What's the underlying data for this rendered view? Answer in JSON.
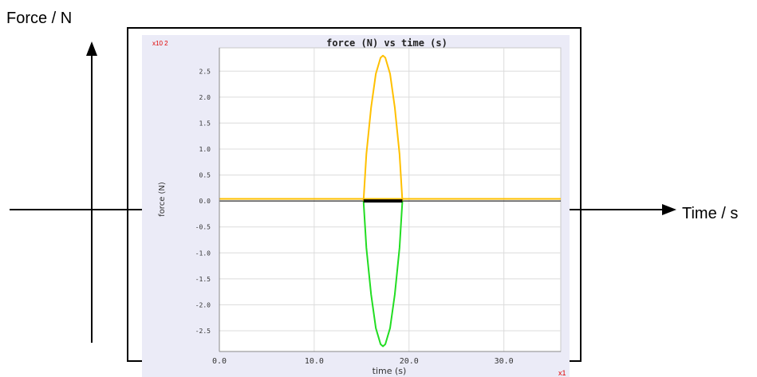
{
  "outer_axes": {
    "y_label": "Force / N",
    "x_label": "Time / s"
  },
  "chart_data": {
    "type": "line",
    "title": "force (N) vs time (s)",
    "xlabel": "time (s)",
    "ylabel": "force (N)",
    "y_multiplier": "x10 2",
    "x_multiplier": "x1",
    "xlim": [
      0,
      36
    ],
    "ylim": [
      -2.9,
      2.95
    ],
    "xticks": [
      "0.0",
      "10.0",
      "20.0",
      "30.0"
    ],
    "yticks": [
      "2.5",
      "2.0",
      "1.5",
      "1.0",
      "0.5",
      "0.0",
      "-0.5",
      "-1.0",
      "-1.5",
      "-2.0",
      "-2.5"
    ],
    "grid": true,
    "series": [
      {
        "color": "#ffc000",
        "x": [
          0,
          36
        ],
        "y": [
          0.04,
          0.04
        ]
      },
      {
        "color": "#ffc000",
        "x": [
          15.2,
          15.5,
          16.0,
          16.5,
          17.0,
          17.25,
          17.5,
          18.0,
          18.5,
          19.0,
          19.3
        ],
        "y": [
          0.0,
          0.9,
          1.8,
          2.45,
          2.76,
          2.8,
          2.76,
          2.45,
          1.8,
          0.9,
          0.0
        ]
      },
      {
        "color": "#22dd22",
        "x": [
          15.2,
          15.5,
          16.0,
          16.5,
          17.0,
          17.25,
          17.5,
          18.0,
          18.5,
          19.0,
          19.3
        ],
        "y": [
          0.0,
          -0.9,
          -1.8,
          -2.45,
          -2.76,
          -2.8,
          -2.76,
          -2.45,
          -1.8,
          -0.9,
          0.0
        ]
      },
      {
        "color": "#000000",
        "x": [
          15.2,
          19.3
        ],
        "y": [
          0.0,
          0.0
        ]
      }
    ]
  }
}
